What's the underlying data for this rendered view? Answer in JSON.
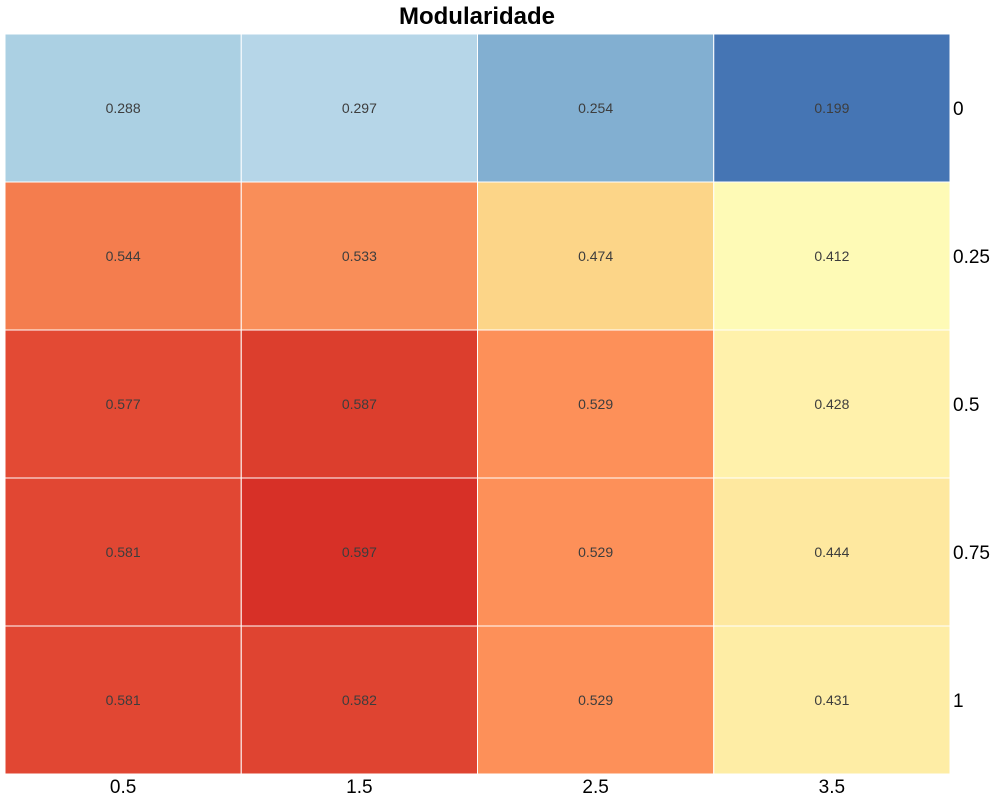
{
  "chart_data": {
    "type": "heatmap",
    "title": "Modularidade",
    "x_categories": [
      "0.5",
      "1.5",
      "2.5",
      "3.5"
    ],
    "y_categories": [
      "0",
      "0.25",
      "0.5",
      "0.75",
      "1"
    ],
    "values": [
      [
        0.288,
        0.297,
        0.254,
        0.199
      ],
      [
        0.544,
        0.533,
        0.474,
        0.412
      ],
      [
        0.577,
        0.587,
        0.529,
        0.428
      ],
      [
        0.581,
        0.597,
        0.529,
        0.444
      ],
      [
        0.581,
        0.582,
        0.529,
        0.431
      ]
    ],
    "value_labels": [
      [
        "0.288",
        "0.297",
        "0.254",
        "0.199"
      ],
      [
        "0.544",
        "0.533",
        "0.474",
        "0.412"
      ],
      [
        "0.577",
        "0.587",
        "0.529",
        "0.428"
      ],
      [
        "0.581",
        "0.597",
        "0.529",
        "0.444"
      ],
      [
        "0.581",
        "0.582",
        "0.529",
        "0.431"
      ]
    ],
    "cell_colors": [
      [
        "#abd0e3",
        "#b6d6e8",
        "#82afd1",
        "#4575b4"
      ],
      [
        "#f47d4e",
        "#f98e59",
        "#fcd588",
        "#fefab6"
      ],
      [
        "#e34a34",
        "#dc3e2d",
        "#fd9059",
        "#fff1ab"
      ],
      [
        "#e14733",
        "#d73027",
        "#fd9059",
        "#fee89f"
      ],
      [
        "#e14733",
        "#df4431",
        "#fd9059",
        "#feeda5"
      ]
    ],
    "colorscale": "RdYlBu (reversed)",
    "x_axis_position": "bottom",
    "y_axis_position": "right",
    "grid": false,
    "legend": "none"
  }
}
